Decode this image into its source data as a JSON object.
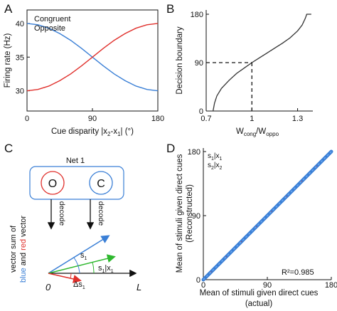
{
  "panels": {
    "A": {
      "letter": "A",
      "chart_data": {
        "type": "line",
        "xlabel_main": "Cue disparity |x",
        "xlabel_sub1": "2",
        "xlabel_mid": "-x",
        "xlabel_sub2": "1",
        "xlabel_end": "| (°)",
        "ylabel": "Firing rate (Hz)",
        "xlim": [
          0,
          180
        ],
        "ylim": [
          27,
          42
        ],
        "xticks": [
          "0",
          "90",
          "180"
        ],
        "yticks": [
          "30",
          "35",
          "40"
        ],
        "series": [
          {
            "name": "Congruent",
            "color": "#3a7fd6",
            "x": [
              0,
              15,
              30,
              45,
              60,
              75,
              90,
              105,
              120,
              135,
              150,
              165,
              180
            ],
            "y": [
              40.0,
              39.8,
              39.3,
              38.5,
              37.5,
              36.3,
              35.0,
              33.7,
              32.5,
              31.5,
              30.7,
              30.2,
              30.0
            ]
          },
          {
            "name": "Opposite",
            "color": "#e0302c",
            "x": [
              0,
              15,
              30,
              45,
              60,
              75,
              90,
              105,
              120,
              135,
              150,
              165,
              180
            ],
            "y": [
              30.0,
              30.2,
              30.7,
              31.5,
              32.5,
              33.7,
              35.0,
              36.3,
              37.5,
              38.5,
              39.3,
              39.8,
              40.0
            ]
          }
        ]
      }
    },
    "B": {
      "letter": "B",
      "chart_data": {
        "type": "line",
        "xlabel_main": "W",
        "xlabel_sub1": "cong",
        "xlabel_mid": "/W",
        "xlabel_sub2": "oppo",
        "ylabel": "Decision boundary",
        "xlim": [
          0.7,
          1.4
        ],
        "ylim": [
          0,
          180
        ],
        "xticks": [
          "0.7",
          "1",
          "1.3"
        ],
        "yticks": [
          "0",
          "90",
          "180"
        ],
        "series": [
          {
            "name": "",
            "color": "#333333",
            "x": [
              0.745,
              0.755,
              0.77,
              0.8,
              0.85,
              0.9,
              0.95,
              1.0,
              1.05,
              1.1,
              1.15,
              1.2,
              1.25,
              1.3,
              1.33,
              1.35,
              1.36,
              1.39
            ],
            "y": [
              0,
              15,
              28,
              42,
              57,
              70,
              80,
              90,
              99,
              108,
              117,
              126,
              136,
              149,
              160,
              172,
              180,
              180
            ]
          }
        ],
        "reference": {
          "x": 1.0,
          "y": 90
        }
      }
    },
    "C": {
      "letter": "C",
      "net_label": "Net 1",
      "node_o": "O",
      "node_c": "C",
      "decode_left": "decode",
      "decode_right": "decode",
      "vertical_label_line1": "vector sum of",
      "vertical_label_blue": "blue",
      "vertical_label_and": " and ",
      "vertical_label_red": "red",
      "vertical_label_end": " vector",
      "origin_label": "0",
      "axis_label": "L",
      "s1_label": "s",
      "s1_sub": "1",
      "s1x1_label": "s",
      "s1x1_sub1": "1",
      "s1x1_mid": "|x",
      "s1x1_sub2": "1",
      "delta_label": "Δs",
      "delta_sub": "1",
      "colors": {
        "blue": "#3a7fd6",
        "red": "#e0302c",
        "green": "#2eb82e"
      }
    },
    "D": {
      "letter": "D",
      "chart_data": {
        "type": "scatter",
        "xlabel_line1": "Mean of stimuli given direct cues",
        "xlabel_line2": "(actual)",
        "ylabel_line1": "Mean of stimuli given direct cues",
        "ylabel_line2": "(Reconstructed)",
        "xlim": [
          0,
          180
        ],
        "ylim": [
          0,
          180
        ],
        "xticks": [
          "0",
          "90",
          "180"
        ],
        "yticks": [
          "0",
          "90",
          "180"
        ],
        "legend": [
          {
            "label": "s",
            "sub1": "1",
            "mid": "|x",
            "sub2": "1",
            "color": "#3a7fd6"
          },
          {
            "label": "s",
            "sub1": "2",
            "mid": "|x",
            "sub2": "2",
            "color": "#e0302c"
          }
        ],
        "annotation": "R²=0.985",
        "series": [
          {
            "name": "s1|x1",
            "color": "#3a7fd6",
            "x": [
              0,
              180
            ],
            "y": [
              0,
              180
            ]
          },
          {
            "name": "s2|x2",
            "color": "#e0302c",
            "x": [
              0,
              180
            ],
            "y": [
              0,
              180
            ]
          }
        ]
      }
    }
  }
}
